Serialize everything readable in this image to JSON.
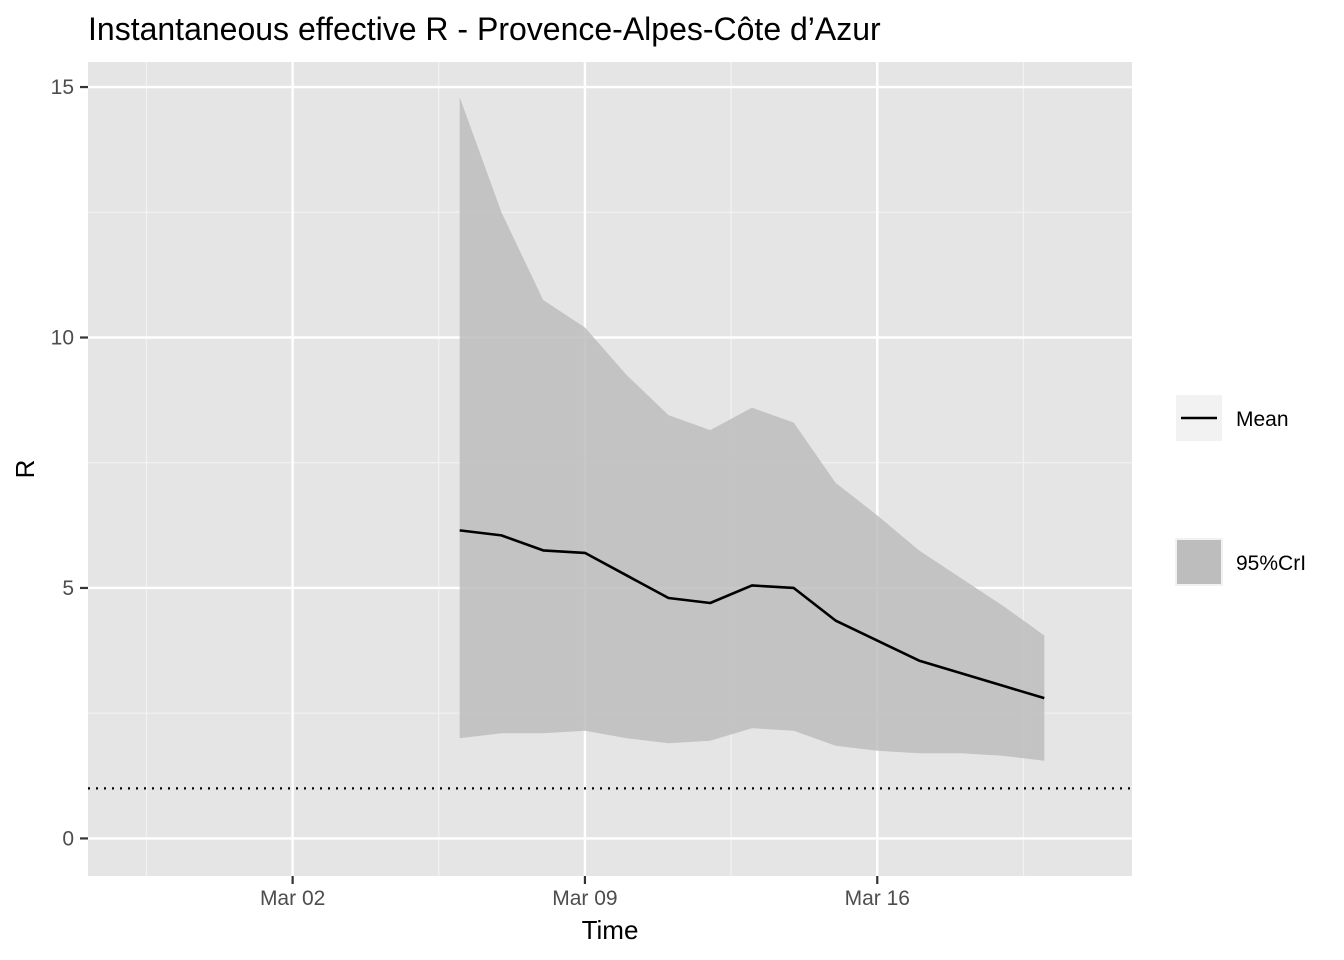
{
  "chart_data": {
    "type": "line",
    "title": "Instantaneous effective R -  Provence-Alpes-Côte d’Azur",
    "xlabel": "Time",
    "ylabel": "R",
    "x_ticks": [
      "2020-03-02",
      "2020-03-09",
      "2020-03-16"
    ],
    "x_tick_labels": [
      "Mar 02",
      "Mar 09",
      "Mar 16"
    ],
    "xlim": [
      "2020-02-26",
      "2020-03-22"
    ],
    "y_ticks": [
      0,
      5,
      10,
      15
    ],
    "ylim": [
      -0.75,
      15.5
    ],
    "grid": true,
    "legend_position": "right",
    "reference_line": {
      "y": 1,
      "style": "dotted"
    },
    "x": [
      "2020-03-06",
      "2020-03-07",
      "2020-03-08",
      "2020-03-09",
      "2020-03-10",
      "2020-03-11",
      "2020-03-12",
      "2020-03-13",
      "2020-03-14",
      "2020-03-15",
      "2020-03-16",
      "2020-03-17",
      "2020-03-18",
      "2020-03-19",
      "2020-03-20"
    ],
    "series": [
      {
        "name": "Mean",
        "type": "line",
        "color": "#000000",
        "values": [
          6.15,
          6.05,
          5.75,
          5.7,
          5.25,
          4.8,
          4.7,
          5.05,
          5.0,
          4.35,
          3.95,
          3.55,
          3.3,
          3.05,
          2.8
        ]
      },
      {
        "name": "95%CrI",
        "type": "band",
        "color": "#bdbdbd",
        "lower": [
          2.0,
          2.1,
          2.1,
          2.15,
          2.0,
          1.9,
          1.95,
          2.2,
          2.15,
          1.85,
          1.75,
          1.7,
          1.7,
          1.65,
          1.55
        ],
        "upper": [
          14.8,
          12.5,
          10.75,
          10.2,
          9.25,
          8.45,
          8.15,
          8.6,
          8.3,
          7.1,
          6.45,
          5.75,
          5.2,
          4.65,
          4.05
        ]
      }
    ]
  },
  "legend": [
    {
      "label": "Mean",
      "key": "line",
      "color": "#000000"
    },
    {
      "label": "95%CrI",
      "key": "fill",
      "color": "#bdbdbd"
    }
  ]
}
